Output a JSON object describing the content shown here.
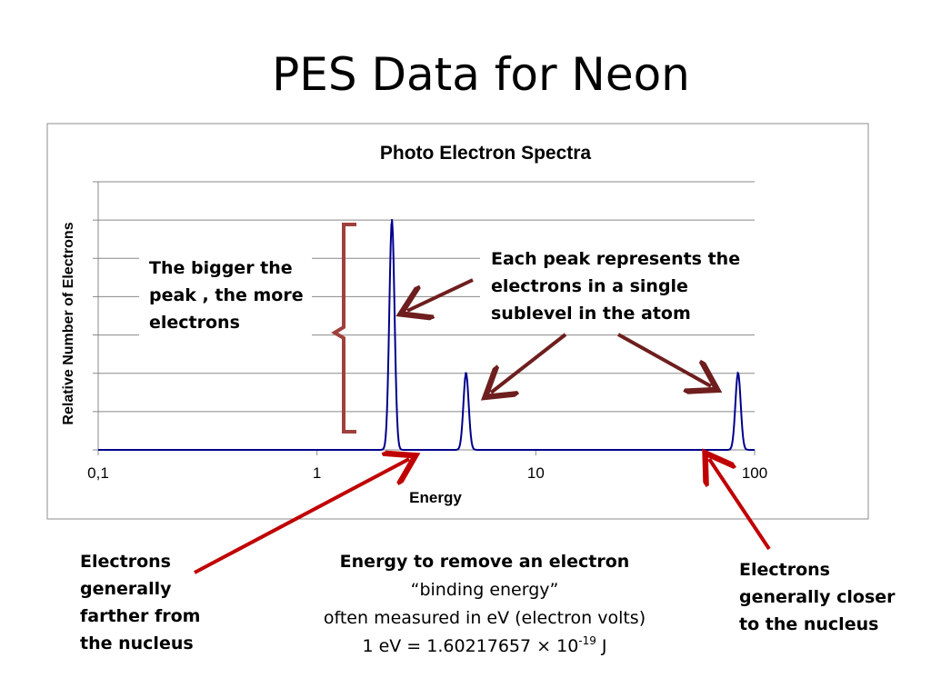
{
  "slide": {
    "title": "PES Data for Neon",
    "annotations": {
      "bigger_peak": "The bigger the peak , the more electrons",
      "each_peak": "Each peak represents the electrons in a single sublevel in the atom",
      "left_caption": "Electrons generally farther from the nucleus",
      "right_caption": "Electrons generally closer to the nucleus",
      "center_title": "Energy to remove an electron",
      "center_line1": "“binding energy”",
      "center_line2": "often measured in eV  (electron volts)",
      "center_line3_prefix": "1 eV = 1.60217657 × 10",
      "center_line3_exp": "-19",
      "center_line3_suffix": " J"
    },
    "colors": {
      "spectrum_line": "#00008b",
      "dark_arrow": "#6e1e1e",
      "red_arrow": "#c00000",
      "brace": "#a0403d",
      "gridline": "#888888"
    }
  },
  "chart_data": {
    "type": "line",
    "title": "Photo Electron Spectra",
    "xlabel": "Energy",
    "ylabel": "Relative Number of Electrons",
    "x_scale": "log",
    "xlim": [
      0.1,
      100
    ],
    "x_ticks": [
      "0,1",
      "1",
      "10",
      "100"
    ],
    "ylim": [
      0,
      7
    ],
    "grid": true,
    "legend": "none",
    "peaks": [
      {
        "energy": 2.2,
        "relative_height": 6
      },
      {
        "energy": 4.8,
        "relative_height": 2
      },
      {
        "energy": 84,
        "relative_height": 2
      }
    ]
  }
}
